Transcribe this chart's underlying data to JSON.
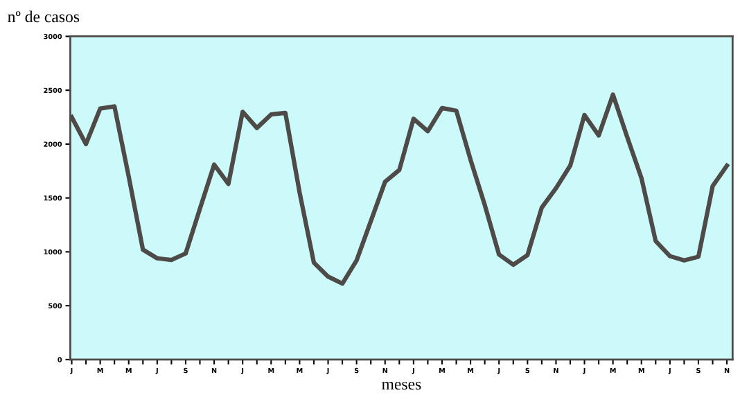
{
  "chart_data": {
    "type": "line",
    "ylabel": "nº de casos",
    "xlabel": "meses",
    "categories": [
      "J",
      null,
      "M",
      null,
      "M",
      null,
      "J",
      null,
      "S",
      null,
      "N",
      null,
      "J",
      null,
      "M",
      null,
      "M",
      null,
      "J",
      null,
      "S",
      null,
      "N",
      null,
      "J",
      null,
      "M",
      null,
      "M",
      null,
      "J",
      null,
      "S",
      null,
      "N",
      null,
      "J",
      null,
      "M",
      null,
      "M",
      null,
      "J",
      null,
      "S",
      null,
      "N"
    ],
    "series": [
      {
        "color": "#4d4a47",
        "values": [
          2250,
          2000,
          2330,
          2350,
          1700,
          1020,
          940,
          925,
          985,
          1400,
          1810,
          1630,
          2300,
          2150,
          2275,
          2290,
          1550,
          900,
          770,
          705,
          920,
          1285,
          1650,
          1760,
          2235,
          2120,
          2335,
          2310,
          1855,
          1435,
          975,
          880,
          970,
          1410,
          1590,
          1800,
          2270,
          2080,
          2460,
          2065,
          1685,
          1100,
          960,
          920,
          955,
          1610,
          1800
        ]
      }
    ],
    "ylim": [
      0,
      3000
    ],
    "yticks": [
      0,
      500,
      1000,
      1500,
      2000,
      2500,
      3000
    ],
    "grid": false,
    "legend": false,
    "marker": "none",
    "line_style": "solid"
  }
}
